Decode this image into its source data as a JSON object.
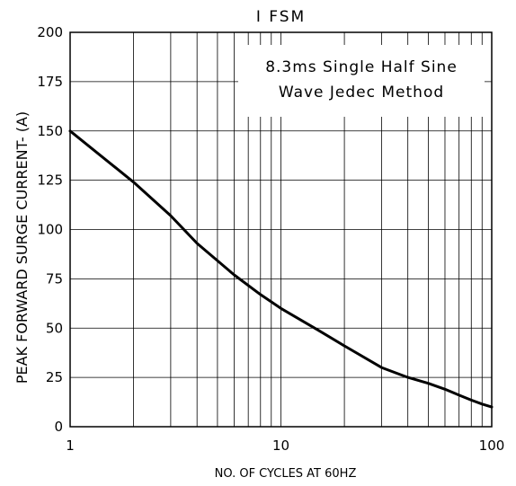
{
  "chart_data": {
    "type": "line",
    "title": "I FSM",
    "xlabel": "NO. OF CYCLES AT 60HZ",
    "ylabel": "PEAK FORWARD SURGE CURRENT- (A)",
    "x_scale": "log",
    "xlim": [
      1,
      100
    ],
    "ylim": [
      0,
      200
    ],
    "x_ticks": [
      1,
      10,
      100
    ],
    "x_tick_labels": [
      "1",
      "10",
      "100"
    ],
    "y_ticks": [
      0,
      25,
      50,
      75,
      100,
      125,
      150,
      175,
      200
    ],
    "y_tick_labels": [
      "0",
      "25",
      "50",
      "75",
      "100",
      "125",
      "150",
      "175",
      "200"
    ],
    "grid": true,
    "annotation": {
      "lines": [
        "8.3ms Single Half Sine",
        "Wave Jedec Method"
      ],
      "position": "top-right"
    },
    "series": [
      {
        "x": [
          1,
          2,
          3,
          4,
          6,
          8,
          10,
          15,
          20,
          30,
          40,
          50,
          60,
          70,
          80,
          90,
          100
        ],
        "y": [
          150,
          124,
          107,
          93,
          77,
          67,
          60,
          49,
          41,
          30,
          25,
          22,
          19,
          16,
          13.5,
          11.5,
          10
        ]
      }
    ]
  }
}
